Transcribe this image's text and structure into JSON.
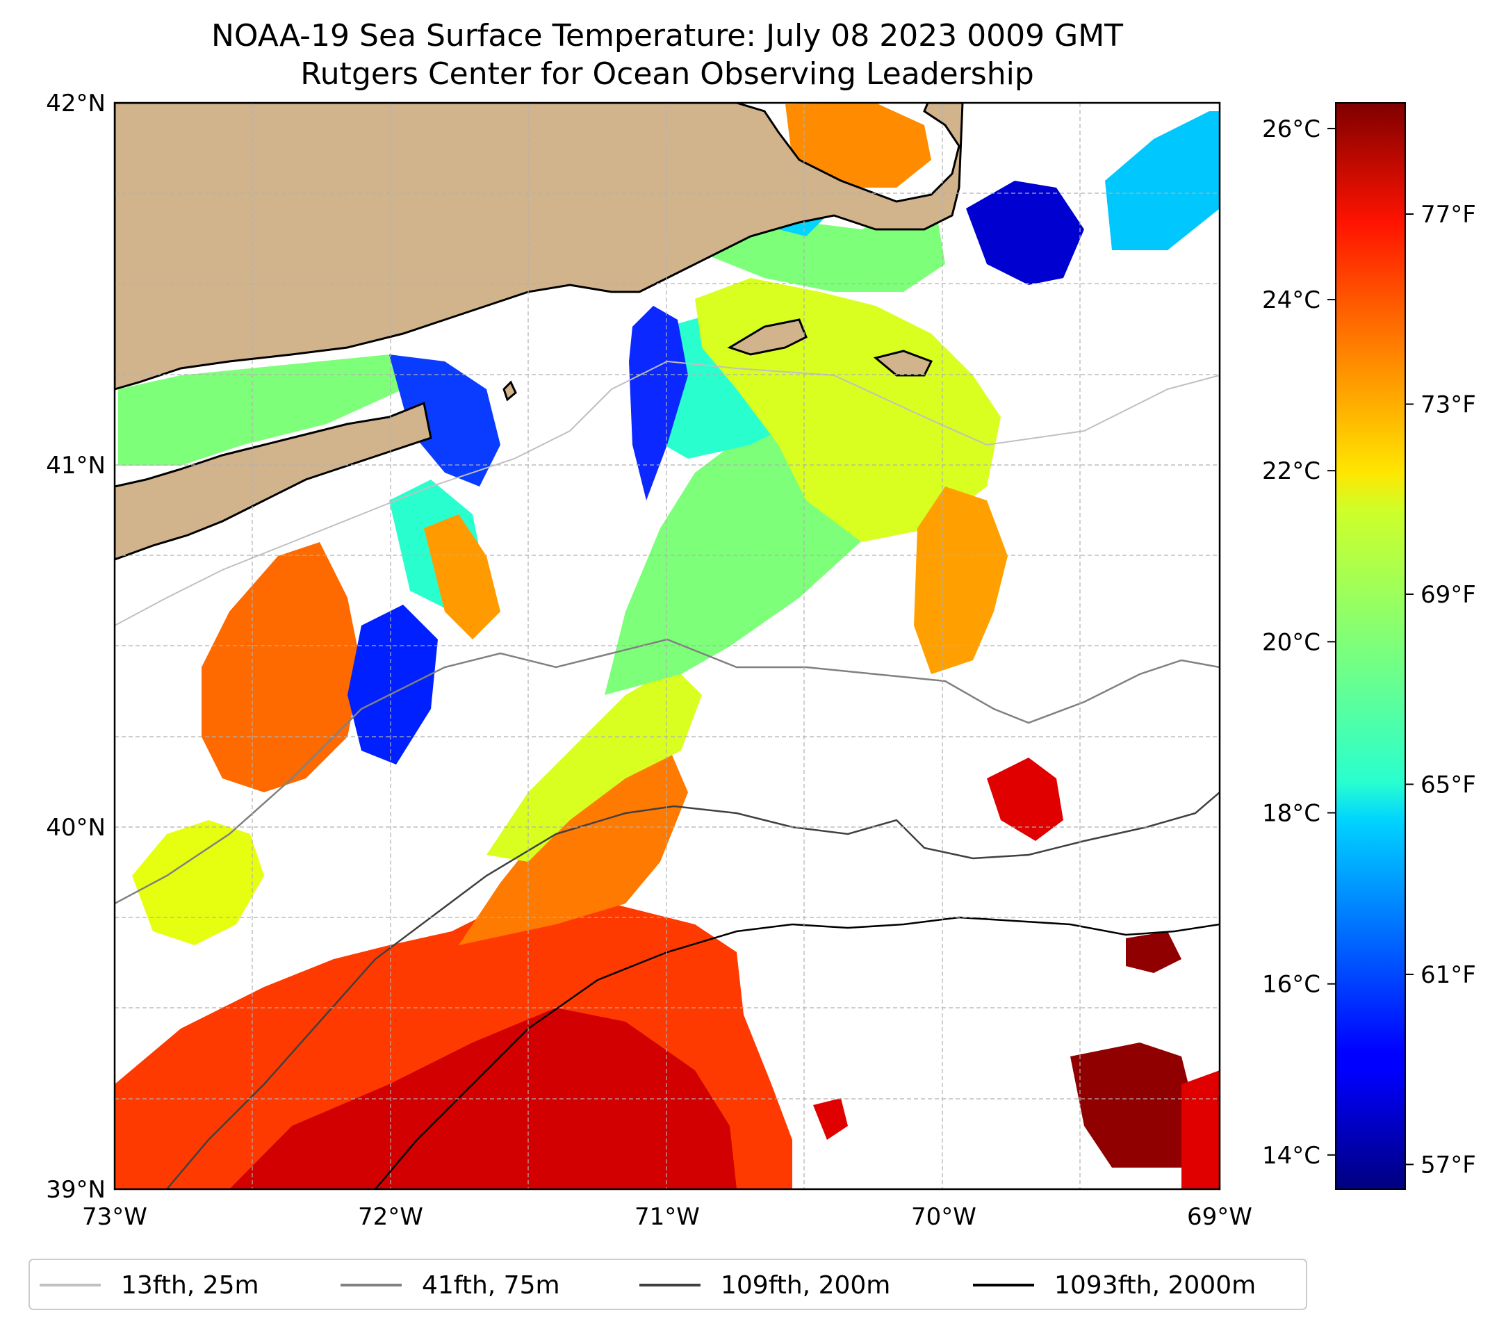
{
  "figure": {
    "title_line1": "NOAA-19 Sea Surface Temperature: July 08 2023 0009 GMT",
    "title_line2": "Rutgers Center for Ocean Observing Leadership"
  },
  "map": {
    "lat_range": [
      39,
      42
    ],
    "lon_range": [
      -73,
      -69
    ],
    "lat_ticks": [
      "39°N",
      "40°N",
      "41°N",
      "42°N"
    ],
    "lon_ticks": [
      "73°W",
      "72°W",
      "71°W",
      "70°W",
      "69°W"
    ],
    "colors": {
      "land": "#d2b48c",
      "grid": "#b0b0b0",
      "coast": "#000000"
    }
  },
  "colorbar": {
    "vmin_c": 13.6,
    "vmax_c": 26.3,
    "celsius_ticks": [
      "14°C",
      "16°C",
      "18°C",
      "20°C",
      "22°C",
      "24°C",
      "26°C"
    ],
    "fahrenheit_ticks": [
      "57°F",
      "61°F",
      "65°F",
      "69°F",
      "73°F",
      "77°F"
    ],
    "celsius_values": [
      14,
      16,
      18,
      20,
      22,
      24,
      26
    ],
    "fahrenheit_values": [
      57,
      61,
      65,
      69,
      73,
      77
    ],
    "colormap": "jet"
  },
  "legend": {
    "items": [
      {
        "label": "13fth, 25m",
        "color": "#c0c0c0"
      },
      {
        "label": "41fth, 75m",
        "color": "#808080"
      },
      {
        "label": "109fth, 200m",
        "color": "#404040"
      },
      {
        "label": "1093fth, 2000m",
        "color": "#000000"
      }
    ]
  }
}
